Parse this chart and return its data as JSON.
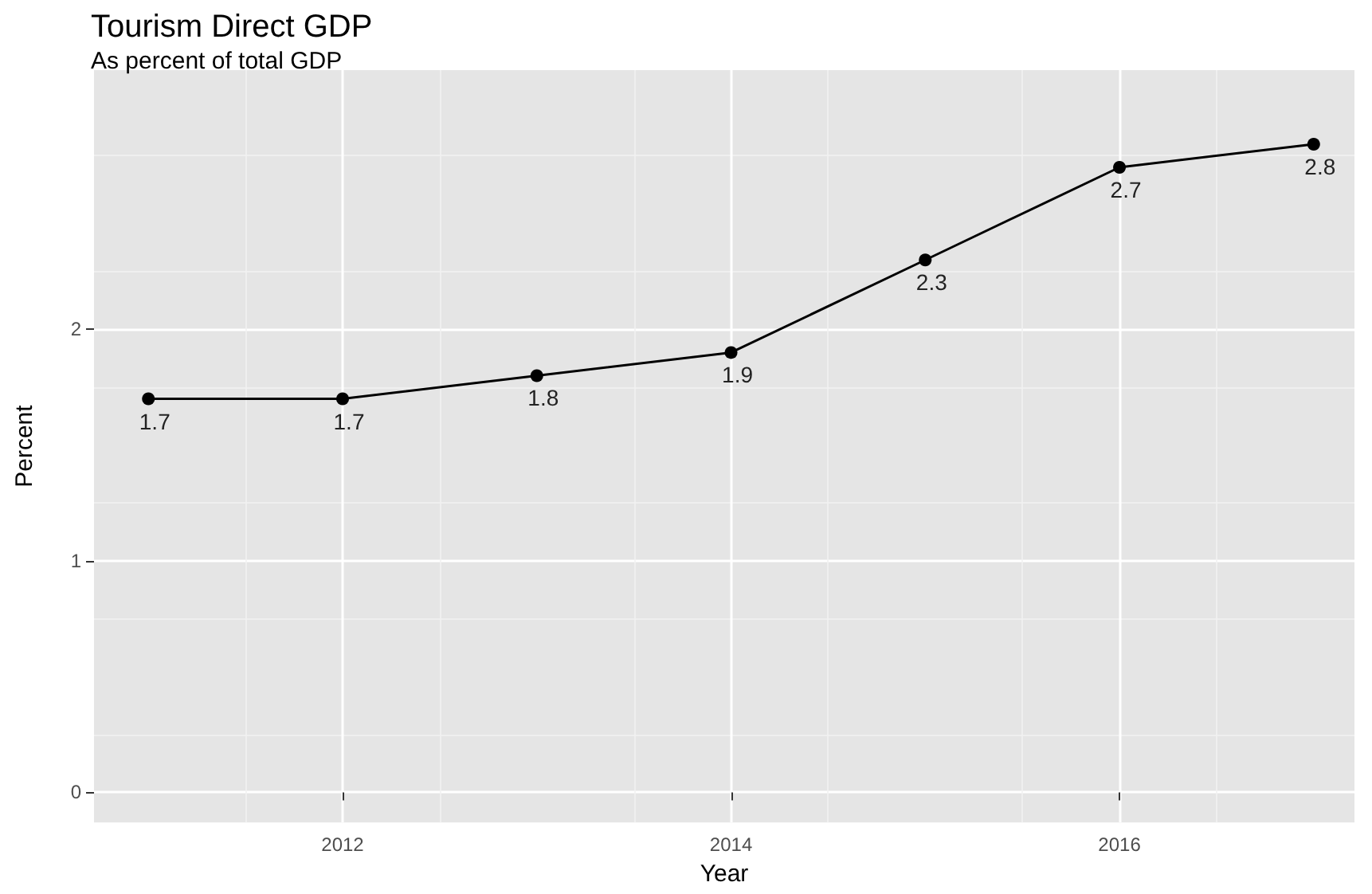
{
  "chart_data": {
    "type": "line",
    "title": "Tourism Direct GDP",
    "subtitle": "As percent of total GDP",
    "xlabel": "Year",
    "ylabel": "Percent",
    "x": [
      2011,
      2012,
      2013,
      2014,
      2015,
      2016,
      2017
    ],
    "series": [
      {
        "color": "#000000",
        "values": [
          1.7,
          1.7,
          1.8,
          1.9,
          2.3,
          2.7,
          2.8
        ]
      }
    ],
    "xlim": [
      2010.72,
      2017.21
    ],
    "xticks": [
      2012,
      2014,
      2016
    ],
    "ylim": [
      -0.13,
      3.12
    ],
    "yticks": [
      0,
      1,
      2
    ],
    "grid": true,
    "marker": "circle",
    "line_style": "solid",
    "data_labels": true
  }
}
